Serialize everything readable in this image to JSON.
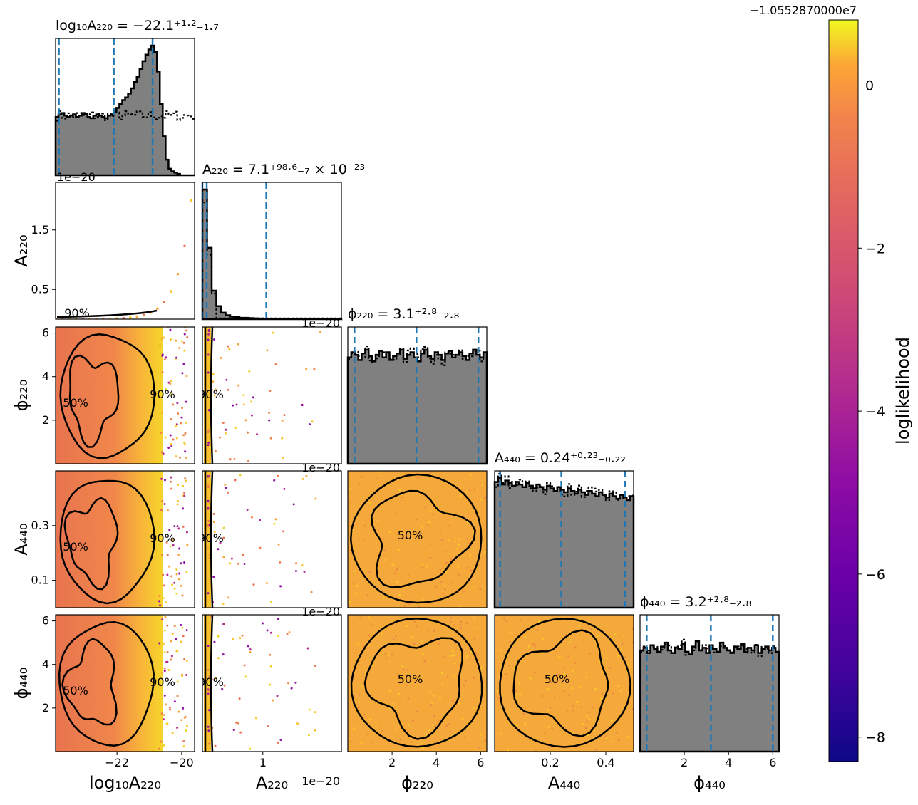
{
  "chart_data": {
    "type": "corner",
    "parameters": [
      {
        "key": "logA220",
        "axis_label": "log₁₀A₂₂₀",
        "title": "log₁₀A₂₂₀ = −22.1⁺¹·²₋₁.₇",
        "range": [
          -23.9,
          -19.6
        ],
        "ticks": [
          -22,
          -20
        ],
        "tick_labels": [
          "−22",
          "−20"
        ],
        "quantiles": [
          -23.8,
          -22.1,
          -20.9
        ]
      },
      {
        "key": "A220",
        "axis_label": "A₂₂₀",
        "title": "A₂₂₀ = 7.1⁺⁹⁸·⁶₋₇ × 10⁻²³",
        "range": [
          0,
          2.3
        ],
        "ticks": [
          1
        ],
        "tick_labels": [
          "1"
        ],
        "offset_text": "1e−20",
        "y_ticks": [
          0.5,
          1.5
        ],
        "y_tick_labels": [
          "0.5",
          "1.5"
        ],
        "quantiles": [
          0.0,
          0.071,
          1.057
        ]
      },
      {
        "key": "phi220",
        "axis_label": "ϕ₂₂₀",
        "title": "ϕ₂₂₀ = 3.1⁺²·⁸₋₂.₈",
        "range": [
          0,
          6.28
        ],
        "ticks": [
          2,
          4,
          6
        ],
        "tick_labels": [
          "2",
          "4",
          "6"
        ],
        "quantiles": [
          0.3,
          3.1,
          5.9
        ]
      },
      {
        "key": "A440",
        "axis_label": "A₄₄₀",
        "title": "A₄₄₀ = 0.24⁺⁰·²³₋₀.₂₂",
        "range": [
          0,
          0.5
        ],
        "ticks": [
          0.2,
          0.4
        ],
        "tick_labels": [
          "0.2",
          "0.4"
        ],
        "y_ticks": [
          0.1,
          0.3
        ],
        "y_tick_labels": [
          "0.1",
          "0.3"
        ],
        "quantiles": [
          0.02,
          0.24,
          0.47
        ]
      },
      {
        "key": "phi440",
        "axis_label": "ϕ₄₄₀",
        "title": "ϕ₄₄₀ = 3.2⁺²·⁸₋₂.₈",
        "range": [
          0,
          6.28
        ],
        "ticks": [
          2,
          4,
          6
        ],
        "tick_labels": [
          "2",
          "4",
          "6"
        ],
        "quantiles": [
          0.3,
          3.2,
          6.0
        ]
      }
    ],
    "contour_levels": [
      "50%",
      "90%"
    ],
    "colorbar": {
      "label": "loglikelihood",
      "offset_text": "−1.0552870000e7",
      "range": [
        -8.3,
        0.8
      ],
      "ticks": [
        0,
        -2,
        -4,
        -6,
        -8
      ],
      "tick_labels": [
        "0",
        "−2",
        "−4",
        "−6",
        "−8"
      ],
      "colormap": "plasma"
    },
    "marginals": {
      "logA220": [
        0.45,
        0.47,
        0.48,
        0.46,
        0.45,
        0.46,
        0.47,
        0.45,
        0.46,
        0.48,
        0.47,
        0.45,
        0.44,
        0.46,
        0.47,
        0.46,
        0.45,
        0.44,
        0.46,
        0.47,
        0.49,
        0.52,
        0.55,
        0.58,
        0.6,
        0.63,
        0.67,
        0.72,
        0.76,
        0.82,
        0.88,
        0.93,
        0.97,
        1.0,
        0.95,
        0.8,
        0.55,
        0.3,
        0.12,
        0.05,
        0.03,
        0.02,
        0.01,
        0.0,
        0.0,
        0.0,
        0.0,
        0.0
      ],
      "A220": [
        1.0,
        0.55,
        0.22,
        0.1,
        0.05,
        0.03,
        0.02,
        0.015,
        0.01,
        0.01,
        0.008,
        0.006,
        0.005,
        0.004,
        0.003,
        0.003,
        0.003,
        0.002,
        0.002,
        0.002,
        0.002,
        0.002,
        0.002,
        0.002,
        0.002,
        0.002,
        0.002,
        0.002,
        0.002,
        0.002
      ],
      "phi220": [
        0.82,
        0.86,
        0.84,
        0.8,
        0.85,
        0.88,
        0.83,
        0.79,
        0.84,
        0.87,
        0.82,
        0.86,
        0.8,
        0.83,
        0.85,
        0.88,
        0.81,
        0.84,
        0.86,
        0.82,
        0.79,
        0.85,
        0.88,
        0.83,
        0.81,
        0.86,
        0.84,
        0.8,
        0.85,
        0.87,
        0.82,
        0.84,
        0.86,
        0.83,
        0.8,
        0.85,
        0.88,
        0.84,
        0.82,
        0.86
      ],
      "A440": [
        0.97,
        1.0,
        0.95,
        0.98,
        0.96,
        0.94,
        0.97,
        0.95,
        0.93,
        0.96,
        0.94,
        0.92,
        0.95,
        0.93,
        0.91,
        0.94,
        0.92,
        0.9,
        0.93,
        0.91,
        0.89,
        0.92,
        0.9,
        0.88,
        0.91,
        0.89,
        0.87,
        0.9,
        0.88,
        0.86,
        0.89,
        0.87,
        0.85,
        0.88,
        0.86,
        0.84,
        0.87,
        0.85,
        0.83,
        0.86
      ],
      "phi440": [
        0.78,
        0.8,
        0.76,
        0.82,
        0.79,
        0.77,
        0.81,
        0.84,
        0.78,
        0.76,
        0.8,
        0.79,
        0.83,
        0.77,
        0.75,
        0.81,
        0.85,
        0.78,
        0.8,
        0.76,
        0.82,
        0.79,
        0.77,
        0.84,
        0.8,
        0.78,
        0.76,
        0.81,
        0.79,
        0.83,
        0.77,
        0.8,
        0.78,
        0.82,
        0.76,
        0.79,
        0.81,
        0.78,
        0.8,
        0.77
      ]
    }
  }
}
